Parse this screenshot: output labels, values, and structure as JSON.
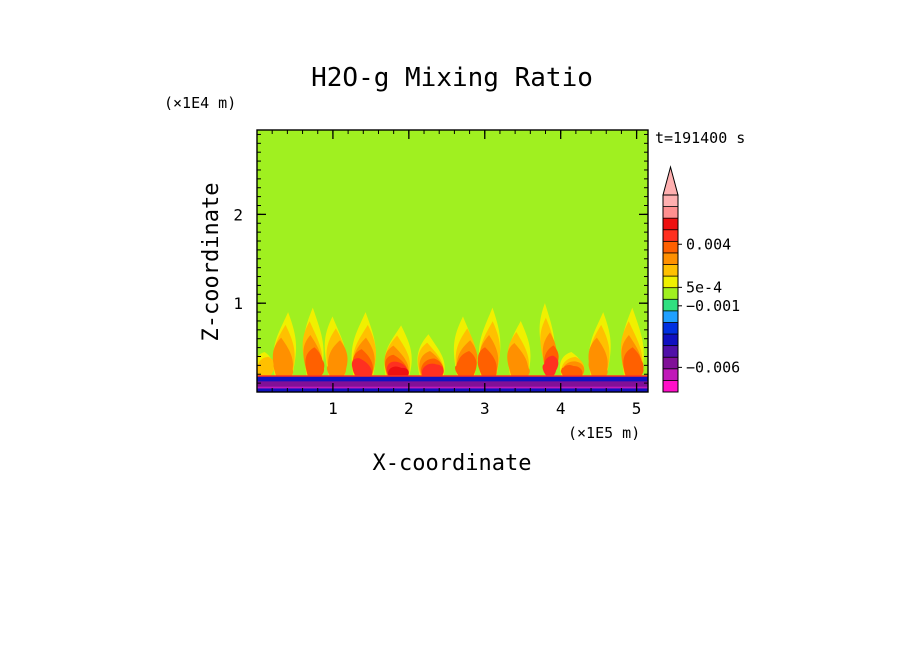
{
  "chart_data": {
    "type": "heatmap",
    "title": "H2O-g Mixing Ratio",
    "xlabel": "X-coordinate",
    "ylabel": "Z-coordinate",
    "x_scale_label": "(×1E5 m)",
    "y_scale_label": "(×1E4 m)",
    "time_label": "t=191400 s",
    "xlim": [
      0,
      5.15
    ],
    "ylim": [
      0,
      2.95
    ],
    "x_ticks": [
      {
        "value": 1,
        "label": "1"
      },
      {
        "value": 2,
        "label": "2"
      },
      {
        "value": 3,
        "label": "3"
      },
      {
        "value": 4,
        "label": "4"
      },
      {
        "value": 5,
        "label": "5"
      }
    ],
    "y_ticks": [
      {
        "value": 1,
        "label": "1"
      },
      {
        "value": 2,
        "label": "2"
      }
    ],
    "background_value": 0.0,
    "colorbar": {
      "colors": [
        "#ff10c8",
        "#c018b8",
        "#801098",
        "#5010a8",
        "#1010c0",
        "#0030e0",
        "#20a0ff",
        "#30e080",
        "#a0f020",
        "#f0f000",
        "#ffc000",
        "#ff9000",
        "#ff6000",
        "#ff3020",
        "#ee1010",
        "#ff9090",
        "#ffb0b0"
      ],
      "labels": [
        {
          "text": "0.004",
          "level": 0.004
        },
        {
          "text": "5e-4",
          "level": 0.0005
        },
        {
          "text": "−0.001",
          "level": -0.001
        },
        {
          "text": "−0.006",
          "level": -0.006
        }
      ]
    },
    "features": {
      "surface_layer": {
        "z_top": 0.18,
        "value": -0.004
      },
      "plumes": [
        {
          "x": 0.1,
          "top": 0.45,
          "width": 0.12,
          "peak": 0.002
        },
        {
          "x": 0.35,
          "top": 0.9,
          "width": 0.22,
          "peak": 0.003
        },
        {
          "x": 0.75,
          "top": 0.95,
          "width": 0.18,
          "peak": 0.004
        },
        {
          "x": 1.05,
          "top": 0.85,
          "width": 0.2,
          "peak": 0.003
        },
        {
          "x": 1.4,
          "top": 0.9,
          "width": 0.25,
          "peak": 0.005
        },
        {
          "x": 1.85,
          "top": 0.75,
          "width": 0.3,
          "peak": 0.006
        },
        {
          "x": 2.3,
          "top": 0.65,
          "width": 0.3,
          "peak": 0.005
        },
        {
          "x": 2.75,
          "top": 0.85,
          "width": 0.22,
          "peak": 0.004
        },
        {
          "x": 3.05,
          "top": 0.95,
          "width": 0.2,
          "peak": 0.004
        },
        {
          "x": 3.45,
          "top": 0.8,
          "width": 0.22,
          "peak": 0.003
        },
        {
          "x": 3.85,
          "top": 1.0,
          "width": 0.06,
          "peak": 0.005
        },
        {
          "x": 4.15,
          "top": 0.45,
          "width": 0.25,
          "peak": 0.004
        },
        {
          "x": 4.5,
          "top": 0.9,
          "width": 0.2,
          "peak": 0.003
        },
        {
          "x": 4.95,
          "top": 0.95,
          "width": 0.22,
          "peak": 0.004
        }
      ]
    }
  }
}
